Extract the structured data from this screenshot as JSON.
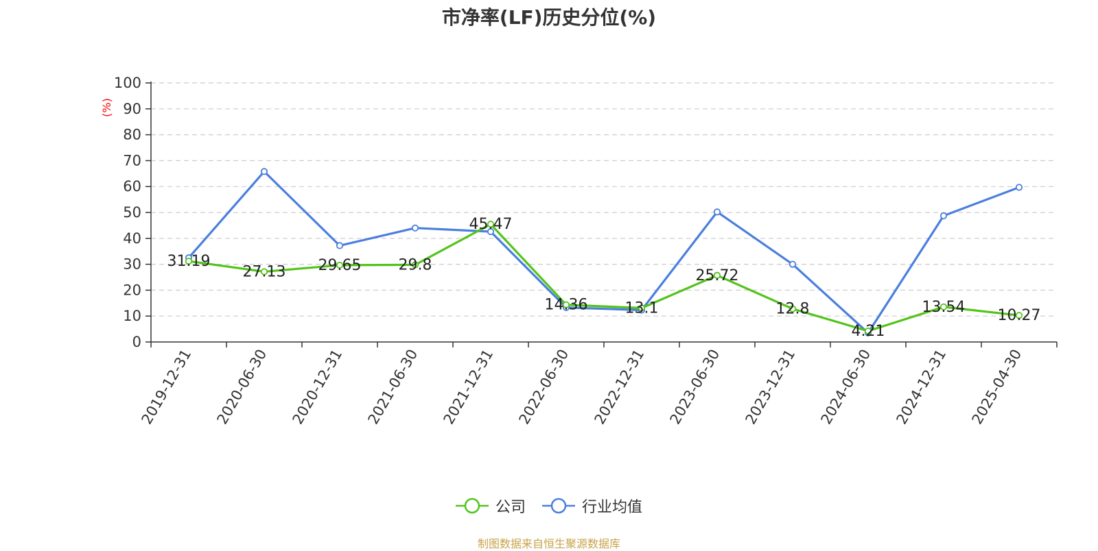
{
  "chart_data": {
    "type": "line",
    "title": "市净率(LF)历史分位(%)",
    "ylabel": "(%)",
    "ylim": [
      0,
      100
    ],
    "yticks": [
      0,
      10,
      20,
      30,
      40,
      50,
      60,
      70,
      80,
      90,
      100
    ],
    "grid": true,
    "legend_position": "bottom",
    "categories": [
      "2019-12-31",
      "2020-06-30",
      "2020-12-31",
      "2021-06-30",
      "2021-12-31",
      "2022-06-30",
      "2022-12-31",
      "2023-06-30",
      "2023-12-31",
      "2024-06-30",
      "2024-12-31",
      "2025-04-30"
    ],
    "series": [
      {
        "name": "公司",
        "color": "#52c41a",
        "values": [
          31.19,
          27.13,
          29.65,
          29.8,
          45.47,
          14.36,
          13.1,
          25.72,
          12.8,
          4.21,
          13.54,
          10.27
        ],
        "data_labels": [
          "31.19",
          "27.13",
          "29.65",
          "29.8",
          "45.47",
          "14.36",
          "13.1",
          "25.72",
          "12.8",
          "4.21",
          "13.54",
          "10.27"
        ]
      },
      {
        "name": "行业均值",
        "color": "#4a7fde",
        "values": [
          32.5,
          65.8,
          37.2,
          44.0,
          42.6,
          13.3,
          12.3,
          50.2,
          30.0,
          3.5,
          48.7,
          59.7
        ]
      }
    ]
  },
  "source_note": "制图数据来自恒生聚源数据库",
  "colors": {
    "axis": "#333333",
    "grid": "#cccccc",
    "ylabel": "#ff0000",
    "source": "#c8a24a"
  }
}
